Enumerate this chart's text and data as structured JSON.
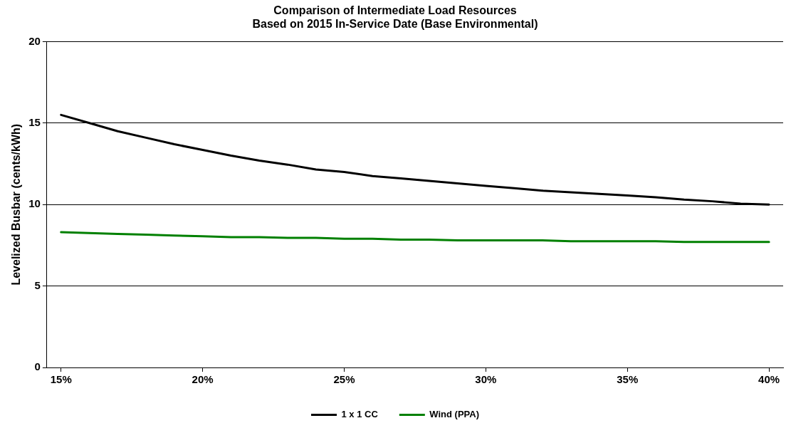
{
  "chart_data": {
    "type": "line",
    "title": "Comparison of Intermediate Load Resources\nBased on 2015 In-Service Date (Base Environmental)",
    "ylabel": "Levelized Busbar (cents/kWh)",
    "x": [
      15,
      16,
      17,
      18,
      19,
      20,
      21,
      22,
      23,
      24,
      25,
      26,
      27,
      28,
      29,
      30,
      31,
      32,
      33,
      34,
      35,
      36,
      37,
      38,
      39,
      40
    ],
    "series": [
      {
        "name": "1 x 1 CC",
        "color": "#000000",
        "values": [
          15.5,
          15.0,
          14.5,
          14.1,
          13.7,
          13.35,
          13.0,
          12.7,
          12.45,
          12.15,
          12.0,
          11.75,
          11.6,
          11.45,
          11.3,
          11.15,
          11.0,
          10.85,
          10.75,
          10.65,
          10.55,
          10.45,
          10.3,
          10.2,
          10.05,
          10.0
        ]
      },
      {
        "name": "Wind (PPA)",
        "color": "#008000",
        "values": [
          8.3,
          8.25,
          8.2,
          8.15,
          8.1,
          8.05,
          8.0,
          8.0,
          7.95,
          7.95,
          7.9,
          7.9,
          7.85,
          7.85,
          7.8,
          7.8,
          7.8,
          7.8,
          7.75,
          7.75,
          7.75,
          7.75,
          7.7,
          7.7,
          7.7,
          7.7
        ]
      }
    ],
    "xlim": [
      14.5,
      40.5
    ],
    "xticks": [
      {
        "value": 15,
        "label": "15%"
      },
      {
        "value": 20,
        "label": "20%"
      },
      {
        "value": 25,
        "label": "25%"
      },
      {
        "value": 30,
        "label": "30%"
      },
      {
        "value": 35,
        "label": "35%"
      },
      {
        "value": 40,
        "label": "40%"
      }
    ],
    "ylim": [
      0,
      20
    ],
    "yticks": [
      0,
      5,
      10,
      15,
      20
    ],
    "grid": "y",
    "legend": "bottom",
    "marker": "none",
    "line_style": "solid"
  }
}
